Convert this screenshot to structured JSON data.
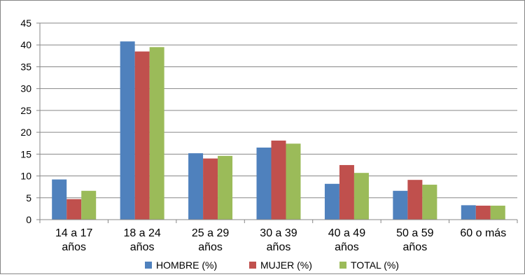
{
  "chart_data": {
    "type": "bar",
    "categories": [
      [
        "14 a 17",
        "años"
      ],
      [
        "18 a 24",
        "años"
      ],
      [
        "25 a 29",
        "años"
      ],
      [
        "30 a 39",
        "años"
      ],
      [
        "40 a 49",
        "años"
      ],
      [
        "50 a 59",
        "años"
      ],
      [
        "60 o más"
      ]
    ],
    "series": [
      {
        "name": "HOMBRE (%)",
        "color": "#4F81BD",
        "values": [
          9.2,
          40.8,
          15.2,
          16.5,
          8.2,
          6.6,
          3.3
        ]
      },
      {
        "name": "MUJER (%)",
        "color": "#C0504D",
        "values": [
          4.7,
          38.5,
          14.0,
          18.1,
          12.5,
          9.1,
          3.2
        ]
      },
      {
        "name": "TOTAL (%)",
        "color": "#9BBB59",
        "values": [
          6.6,
          39.5,
          14.6,
          17.4,
          10.7,
          8.0,
          3.2
        ]
      }
    ],
    "ylim": [
      0,
      45
    ],
    "yticks": [
      0,
      5,
      10,
      15,
      20,
      25,
      30,
      35,
      40,
      45
    ],
    "grid": true,
    "legend_position": "bottom"
  }
}
